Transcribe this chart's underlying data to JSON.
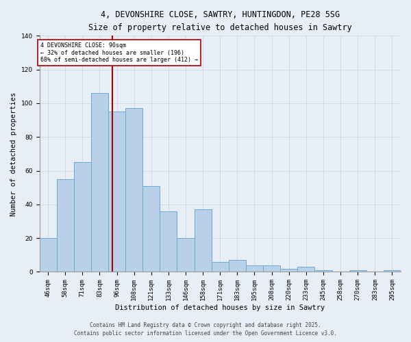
{
  "title1": "4, DEVONSHIRE CLOSE, SAWTRY, HUNTINGDON, PE28 5SG",
  "title2": "Size of property relative to detached houses in Sawtry",
  "xlabel": "Distribution of detached houses by size in Sawtry",
  "ylabel": "Number of detached properties",
  "bin_labels": [
    "46sqm",
    "58sqm",
    "71sqm",
    "83sqm",
    "96sqm",
    "108sqm",
    "121sqm",
    "133sqm",
    "146sqm",
    "158sqm",
    "171sqm",
    "183sqm",
    "195sqm",
    "208sqm",
    "220sqm",
    "233sqm",
    "245sqm",
    "258sqm",
    "270sqm",
    "283sqm",
    "295sqm"
  ],
  "values": [
    20,
    55,
    65,
    106,
    95,
    97,
    51,
    36,
    20,
    37,
    6,
    7,
    4,
    4,
    2,
    3,
    1,
    0,
    1,
    0,
    1
  ],
  "bar_color": "#b8d0e8",
  "bar_edge_color": "#6aaad4",
  "marker_label": "4 DEVONSHIRE CLOSE: 90sqm",
  "annotation_line1": "← 32% of detached houses are smaller (196)",
  "annotation_line2": "68% of semi-detached houses are larger (412) →",
  "annotation_box_color": "#ffffff",
  "annotation_border_color": "#aa0000",
  "vline_color": "#aa0000",
  "vline_x": 3.72,
  "grid_color": "#c8d4e0",
  "bg_color": "#e8eef5",
  "footer1": "Contains HM Land Registry data © Crown copyright and database right 2025.",
  "footer2": "Contains public sector information licensed under the Open Government Licence v3.0.",
  "ylim": [
    0,
    140
  ],
  "title1_fontsize": 8.5,
  "title2_fontsize": 8.0,
  "ylabel_fontsize": 7.5,
  "xlabel_fontsize": 7.5,
  "tick_fontsize": 6.5,
  "footer_fontsize": 5.5
}
